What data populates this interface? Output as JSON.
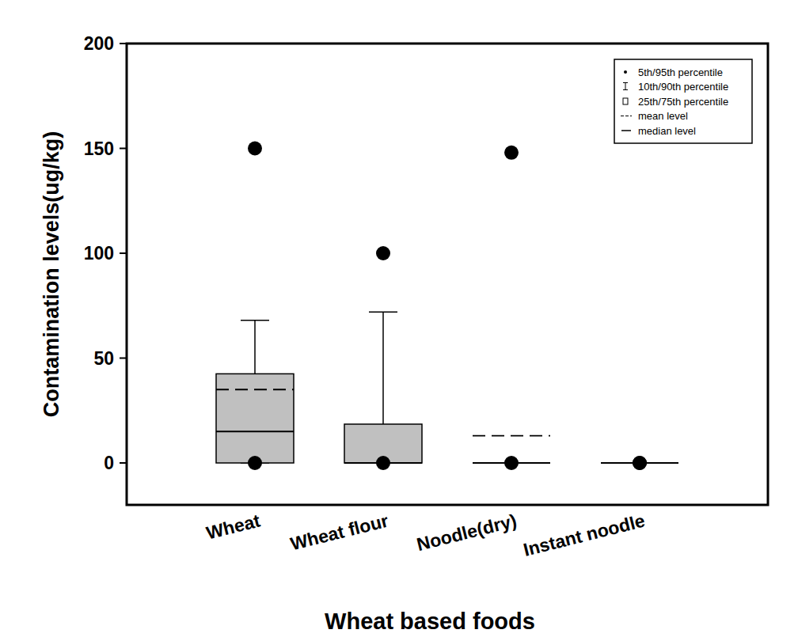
{
  "chart_data": {
    "type": "box",
    "xlabel": "Wheat based foods",
    "ylabel": "Contamination levels(ug/kg)",
    "categories": [
      "Wheat",
      "Wheat flour",
      "Noodle(dry)",
      "Instant noodle"
    ],
    "boxes": [
      {
        "p5": 0,
        "p10": 0,
        "p25": 0,
        "median": 15,
        "p75": 42.5,
        "p90": 68,
        "p95": 150,
        "mean": 35
      },
      {
        "p5": 0,
        "p10": 0,
        "p25": 0,
        "median": 0,
        "p75": 18.5,
        "p90": 72,
        "p95": 100,
        "mean": null
      },
      {
        "p5": 0,
        "p10": 0,
        "p25": 0,
        "median": 0,
        "p75": 0,
        "p90": 0,
        "p95": 148,
        "mean": 13
      },
      {
        "p5": 0,
        "p10": 0,
        "p25": 0,
        "median": 0,
        "p75": 0,
        "p90": 0,
        "p95": 0,
        "mean": 0
      }
    ],
    "legend_labels": [
      "5th/95th percentile",
      "10th/90th percentile",
      "25th/75th percentile",
      "mean level",
      "median level"
    ],
    "color": "#c0c0c0",
    "legend": "upper right",
    "ylim": [
      -20,
      200
    ],
    "yticks": [
      0,
      50,
      100,
      150,
      200
    ]
  }
}
